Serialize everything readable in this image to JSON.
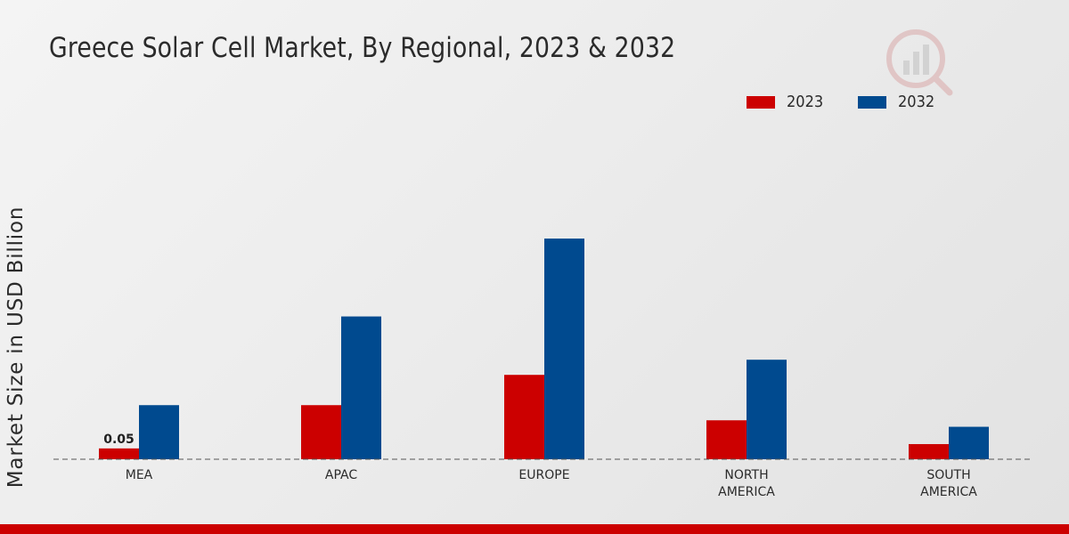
{
  "colors": {
    "series_2023": "#cc0000",
    "series_2032": "#004a8f",
    "axis_line": "#555555",
    "text": "#2b2b2b",
    "bottom_bar": "#cc0000"
  },
  "chart_data": {
    "type": "bar",
    "title": "Greece Solar Cell Market, By Regional, 2023 & 2032",
    "xlabel": "",
    "ylabel": "Market Size in USD Billion",
    "categories": [
      "MEA",
      "APAC",
      "EUROPE",
      "NORTH AMERICA",
      "SOUTH AMERICA"
    ],
    "category_label_lines": [
      [
        "MEA"
      ],
      [
        "APAC"
      ],
      [
        "EUROPE"
      ],
      [
        "NORTH",
        "AMERICA"
      ],
      [
        "SOUTH",
        "AMERICA"
      ]
    ],
    "series": [
      {
        "name": "2023",
        "values": [
          0.05,
          0.25,
          0.39,
          0.18,
          0.07
        ]
      },
      {
        "name": "2032",
        "values": [
          0.25,
          0.66,
          1.02,
          0.46,
          0.15
        ]
      }
    ],
    "data_labels": [
      {
        "series": 0,
        "category": 0,
        "text": "0.05"
      }
    ],
    "ylim": [
      0,
      1.3
    ],
    "grid": false,
    "legend_position": "top-right",
    "baseline": "dashed"
  },
  "icons": {
    "logo": "magnifier-chart-logo-icon"
  }
}
